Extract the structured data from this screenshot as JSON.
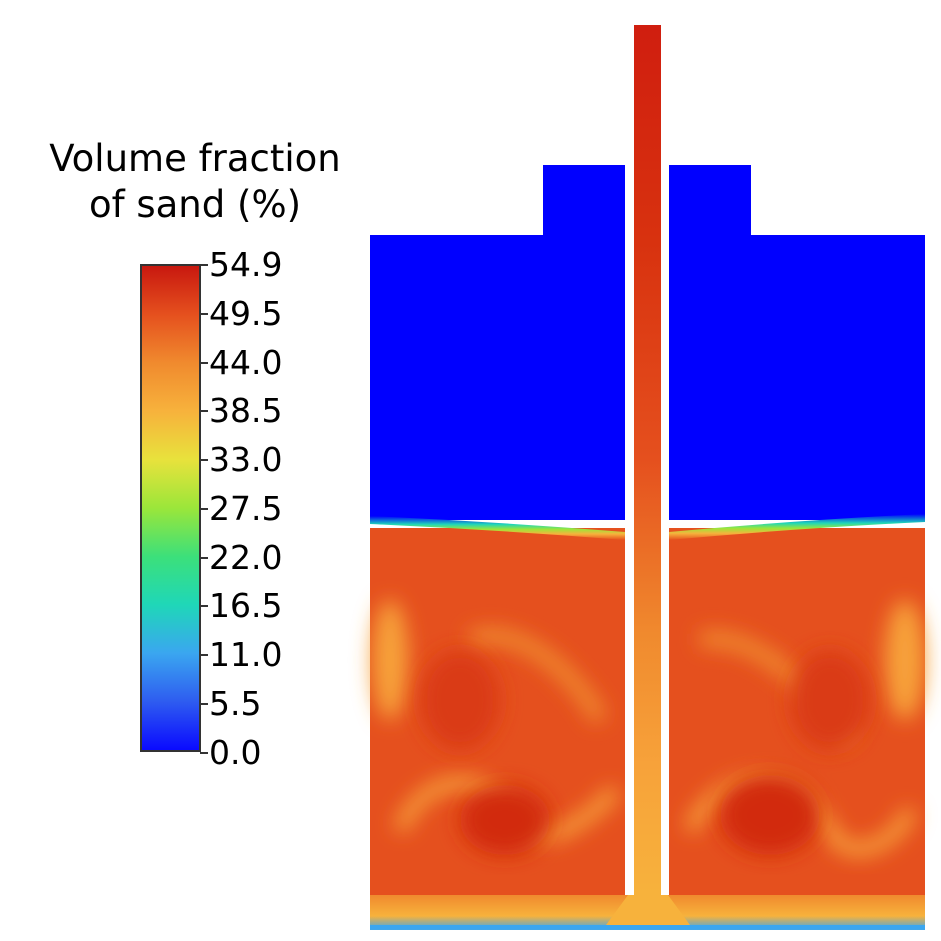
{
  "legend": {
    "title_line1": "Volume fraction",
    "title_line2": "of sand (%)",
    "ticks": [
      "54.9",
      "49.5",
      "44.0",
      "38.5",
      "33.0",
      "27.5",
      "22.0",
      "16.5",
      "11.0",
      "5.5",
      "0.0"
    ],
    "colormap": [
      "#0a0aff",
      "#2e5cf0",
      "#3aa6f0",
      "#1fd7b8",
      "#3ce07a",
      "#9be63a",
      "#e8e23c",
      "#f7b23c",
      "#f08a2e",
      "#e5501e",
      "#c8180f"
    ]
  },
  "colors": {
    "water": "#0000ff",
    "sand_bed": "#e5501e",
    "sand_dense": "#d8320f",
    "sand_light": "#f7a23a",
    "pipe_top": "#c8180f"
  }
}
